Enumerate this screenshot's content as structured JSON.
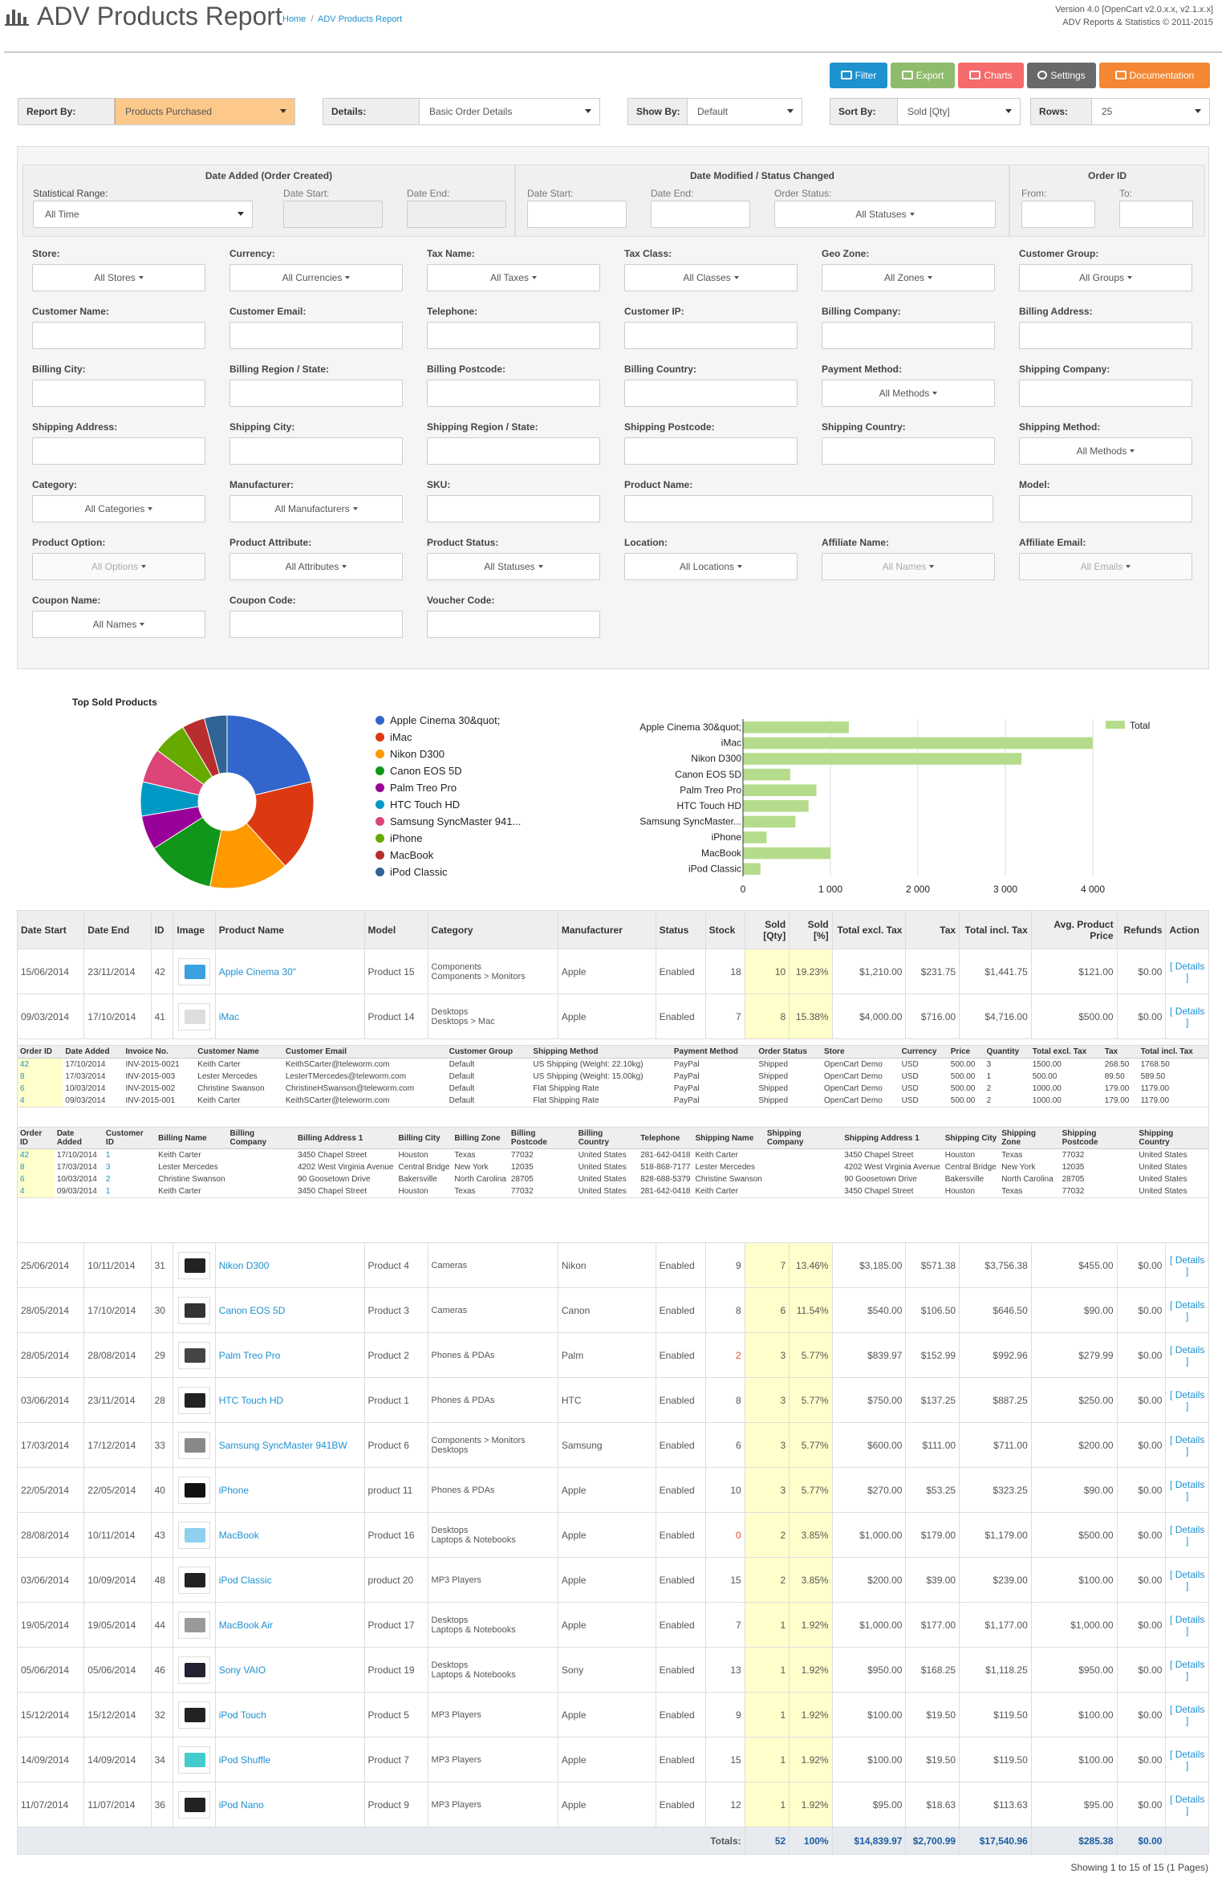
{
  "header": {
    "title": "ADV Products Report",
    "breadcrumb": [
      "Home",
      "ADV Products Report"
    ],
    "version_line1": "Version 4.0 [OpenCart v2.0.x.x, v2.1.x.x]",
    "version_line2": "ADV Reports & Statistics © 2011-2015"
  },
  "toolbar": {
    "filter": "Filter",
    "export": "Export",
    "charts": "Charts",
    "settings": "Settings",
    "documentation": "Documentation"
  },
  "selectors": [
    {
      "label": "Report By:",
      "value": "Products Purchased"
    },
    {
      "label": "Details:",
      "value": "Basic Order Details"
    },
    {
      "label": "Show By:",
      "value": "Default"
    },
    {
      "label": "Sort By:",
      "value": "Sold [Qty]"
    },
    {
      "label": "Rows:",
      "value": "25"
    }
  ],
  "filters": {
    "date_added": {
      "head": "Date Added (Order Created)",
      "range_label": "Statistical Range:",
      "range_value": "All Time",
      "start": "Date Start:",
      "end": "Date End:"
    },
    "date_modified": {
      "head": "Date Modified / Status Changed",
      "start": "Date Start:",
      "end": "Date End:",
      "status_label": "Order Status:",
      "status_value": "All Statuses"
    },
    "order_id": {
      "head": "Order ID",
      "from": "From:",
      "to": "To:"
    },
    "fields": [
      {
        "label": "Store:",
        "value": "All Stores",
        "dd": true
      },
      {
        "label": "Currency:",
        "value": "All Currencies",
        "dd": true
      },
      {
        "label": "Tax Name:",
        "value": "All Taxes",
        "dd": true
      },
      {
        "label": "Tax Class:",
        "value": "All Classes",
        "dd": true
      },
      {
        "label": "Geo Zone:",
        "value": "All Zones",
        "dd": true
      },
      {
        "label": "Customer Group:",
        "value": "All Groups",
        "dd": true
      },
      {
        "label": "Customer Name:"
      },
      {
        "label": "Customer Email:"
      },
      {
        "label": "Telephone:"
      },
      {
        "label": "Customer IP:"
      },
      {
        "label": "Billing Company:"
      },
      {
        "label": "Billing Address:"
      },
      {
        "label": "Billing City:"
      },
      {
        "label": "Billing Region / State:"
      },
      {
        "label": "Billing Postcode:"
      },
      {
        "label": "Billing Country:"
      },
      {
        "label": "Payment Method:",
        "value": "All Methods",
        "dd": true
      },
      {
        "label": "Shipping Company:"
      },
      {
        "label": "Shipping Address:"
      },
      {
        "label": "Shipping City:"
      },
      {
        "label": "Shipping Region / State:"
      },
      {
        "label": "Shipping Postcode:"
      },
      {
        "label": "Shipping Country:"
      },
      {
        "label": "Shipping Method:",
        "value": "All Methods",
        "dd": true
      },
      {
        "label": "Category:",
        "value": "All Categories",
        "dd": true
      },
      {
        "label": "Manufacturer:",
        "value": "All Manufacturers",
        "dd": true
      },
      {
        "label": "SKU:"
      },
      {
        "label": "Product Name:",
        "wide": true
      },
      {
        "label": "Model:"
      },
      {
        "label": "Product Option:",
        "value": "All Options",
        "dd": true,
        "dis": true
      },
      {
        "label": "Product Attribute:",
        "value": "All Attributes",
        "dd": true
      },
      {
        "label": "Product Status:",
        "value": "All Statuses",
        "dd": true
      },
      {
        "label": "Location:",
        "value": "All Locations",
        "dd": true
      },
      {
        "label": "Affiliate Name:",
        "value": "All Names",
        "dd": true,
        "dis": true
      },
      {
        "label": "Affiliate Email:",
        "value": "All Emails",
        "dd": true,
        "dis": true
      },
      {
        "label": "Coupon Name:",
        "value": "All Names",
        "dd": true
      },
      {
        "label": "Coupon Code:"
      },
      {
        "label": "Voucher Code:"
      }
    ]
  },
  "chart_data": [
    {
      "type": "pie",
      "title": "Top Sold Products",
      "categories": [
        "Apple Cinema 30&quot;",
        "iMac",
        "Nikon D300",
        "Canon EOS 5D",
        "Palm Treo Pro",
        "HTC Touch HD",
        "Samsung SyncMaster 941...",
        "iPhone",
        "MacBook",
        "iPod Classic"
      ],
      "values": [
        10,
        8,
        7,
        6,
        3,
        3,
        3,
        3,
        2,
        2
      ],
      "colors": [
        "#3366cc",
        "#dc3912",
        "#ff9900",
        "#109618",
        "#990099",
        "#0099c6",
        "#dd4477",
        "#66aa00",
        "#b82e2e",
        "#316395"
      ]
    },
    {
      "type": "bar",
      "categories": [
        "Apple Cinema 30&quot;",
        "iMac",
        "Nikon D300",
        "Canon EOS 5D",
        "Palm Treo Pro",
        "HTC Touch HD",
        "Samsung SyncMaster...",
        "iPhone",
        "MacBook",
        "iPod Classic"
      ],
      "series": [
        {
          "name": "Total",
          "values": [
            1210,
            4000,
            3185,
            540,
            839.97,
            750,
            600,
            270,
            1000,
            200
          ]
        }
      ],
      "xlim": [
        0,
        4000
      ],
      "xticks": [
        "0",
        "1 000",
        "2 000",
        "3 000",
        "4 000"
      ],
      "color": "#b5dc8c"
    }
  ],
  "table": {
    "headers": [
      "Date Start",
      "Date End",
      "ID",
      "Image",
      "Product Name",
      "Model",
      "Category",
      "Manufacturer",
      "Status",
      "Stock",
      "Sold [Qty]",
      "Sold [%]",
      "Total excl. Tax",
      "Tax",
      "Total incl. Tax",
      "Avg. Product Price",
      "Refunds",
      "Action"
    ],
    "rows": [
      [
        "15/06/2014",
        "23/11/2014",
        "42",
        "",
        "Apple Cinema 30\"",
        "Product 15",
        "Components\nComponents > Monitors",
        "Apple",
        "Enabled",
        "18",
        "10",
        "19.23%",
        "$1,210.00",
        "$231.75",
        "$1,441.75",
        "$121.00",
        "$0.00",
        "[ Details ]"
      ],
      [
        "09/03/2014",
        "17/10/2014",
        "41",
        "",
        "iMac",
        "Product 14",
        "Desktops\nDesktops > Mac",
        "Apple",
        "Enabled",
        "7",
        "8",
        "15.38%",
        "$4,000.00",
        "$716.00",
        "$4,716.00",
        "$500.00",
        "$0.00",
        "[ Details ]"
      ],
      [
        "25/06/2014",
        "10/11/2014",
        "31",
        "",
        "Nikon D300",
        "Product 4",
        "Cameras",
        "Nikon",
        "Enabled",
        "9",
        "7",
        "13.46%",
        "$3,185.00",
        "$571.38",
        "$3,756.38",
        "$455.00",
        "$0.00",
        "[ Details ]"
      ],
      [
        "28/05/2014",
        "17/10/2014",
        "30",
        "",
        "Canon EOS 5D",
        "Product 3",
        "Cameras",
        "Canon",
        "Enabled",
        "8",
        "6",
        "11.54%",
        "$540.00",
        "$106.50",
        "$646.50",
        "$90.00",
        "$0.00",
        "[ Details ]"
      ],
      [
        "28/05/2014",
        "28/08/2014",
        "29",
        "",
        "Palm Treo Pro",
        "Product 2",
        "Phones & PDAs",
        "Palm",
        "Enabled",
        "2",
        "3",
        "5.77%",
        "$839.97",
        "$152.99",
        "$992.96",
        "$279.99",
        "$0.00",
        "[ Details ]"
      ],
      [
        "03/06/2014",
        "23/11/2014",
        "28",
        "",
        "HTC Touch HD",
        "Product 1",
        "Phones & PDAs",
        "HTC",
        "Enabled",
        "8",
        "3",
        "5.77%",
        "$750.00",
        "$137.25",
        "$887.25",
        "$250.00",
        "$0.00",
        "[ Details ]"
      ],
      [
        "17/03/2014",
        "17/12/2014",
        "33",
        "",
        "Samsung SyncMaster 941BW",
        "Product 6",
        "Components > Monitors\nDesktops",
        "Samsung",
        "Enabled",
        "6",
        "3",
        "5.77%",
        "$600.00",
        "$111.00",
        "$711.00",
        "$200.00",
        "$0.00",
        "[ Details ]"
      ],
      [
        "22/05/2014",
        "22/05/2014",
        "40",
        "",
        "iPhone",
        "product 11",
        "Phones & PDAs",
        "Apple",
        "Enabled",
        "10",
        "3",
        "5.77%",
        "$270.00",
        "$53.25",
        "$323.25",
        "$90.00",
        "$0.00",
        "[ Details ]"
      ],
      [
        "28/08/2014",
        "10/11/2014",
        "43",
        "",
        "MacBook",
        "Product 16",
        "Desktops\nLaptops & Notebooks",
        "Apple",
        "Enabled",
        "0",
        "2",
        "3.85%",
        "$1,000.00",
        "$179.00",
        "$1,179.00",
        "$500.00",
        "$0.00",
        "[ Details ]"
      ],
      [
        "03/06/2014",
        "10/09/2014",
        "48",
        "",
        "iPod Classic",
        "product 20",
        "MP3 Players",
        "Apple",
        "Enabled",
        "15",
        "2",
        "3.85%",
        "$200.00",
        "$39.00",
        "$239.00",
        "$100.00",
        "$0.00",
        "[ Details ]"
      ],
      [
        "19/05/2014",
        "19/05/2014",
        "44",
        "",
        "MacBook Air",
        "Product 17",
        "Desktops\nLaptops & Notebooks",
        "Apple",
        "Enabled",
        "7",
        "1",
        "1.92%",
        "$1,000.00",
        "$177.00",
        "$1,177.00",
        "$1,000.00",
        "$0.00",
        "[ Details ]"
      ],
      [
        "05/06/2014",
        "05/06/2014",
        "46",
        "",
        "Sony VAIO",
        "Product 19",
        "Desktops\nLaptops & Notebooks",
        "Sony",
        "Enabled",
        "13",
        "1",
        "1.92%",
        "$950.00",
        "$168.25",
        "$1,118.25",
        "$950.00",
        "$0.00",
        "[ Details ]"
      ],
      [
        "15/12/2014",
        "15/12/2014",
        "32",
        "",
        "iPod Touch",
        "Product 5",
        "MP3 Players",
        "Apple",
        "Enabled",
        "9",
        "1",
        "1.92%",
        "$100.00",
        "$19.50",
        "$119.50",
        "$100.00",
        "$0.00",
        "[ Details ]"
      ],
      [
        "14/09/2014",
        "14/09/2014",
        "34",
        "",
        "iPod Shuffle",
        "Product 7",
        "MP3 Players",
        "Apple",
        "Enabled",
        "15",
        "1",
        "1.92%",
        "$100.00",
        "$19.50",
        "$119.50",
        "$100.00",
        "$0.00",
        "[ Details ]"
      ],
      [
        "11/07/2014",
        "11/07/2014",
        "36",
        "",
        "iPod Nano",
        "Product 9",
        "MP3 Players",
        "Apple",
        "Enabled",
        "12",
        "1",
        "1.92%",
        "$95.00",
        "$18.63",
        "$113.63",
        "$95.00",
        "$0.00",
        "[ Details ]"
      ]
    ],
    "totals": {
      "label": "Totals:",
      "qty": "52",
      "pct": "100%",
      "excl": "$14,839.97",
      "tax": "$2,700.99",
      "incl": "$17,540.96",
      "avg": "$285.38",
      "refunds": "$0.00"
    }
  },
  "order_details": {
    "headers": [
      "Order ID",
      "Date Added",
      "Invoice No.",
      "Customer Name",
      "Customer Email",
      "Customer Group",
      "Shipping Method",
      "Payment Method",
      "Order Status",
      "Store",
      "Currency",
      "Price",
      "Quantity",
      "Total excl. Tax",
      "Tax",
      "Total incl. Tax"
    ],
    "rows": [
      [
        "42",
        "17/10/2014",
        "INV-2015-0021",
        "Keith Carter",
        "KeithSCarter@teleworm.com",
        "Default",
        "US Shipping (Weight: 22.10kg)",
        "PayPal",
        "Shipped",
        "OpenCart Demo",
        "USD",
        "500.00",
        "3",
        "1500.00",
        "268.50",
        "1768.50"
      ],
      [
        "8",
        "17/03/2014",
        "INV-2015-003",
        "Lester Mercedes",
        "LesterTMercedes@teleworm.com",
        "Default",
        "US Shipping (Weight: 15.00kg)",
        "PayPal",
        "Shipped",
        "OpenCart Demo",
        "USD",
        "500.00",
        "1",
        "500.00",
        "89.50",
        "589.50"
      ],
      [
        "6",
        "10/03/2014",
        "INV-2015-002",
        "Christine Swanson",
        "ChristineHSwanson@teleworm.com",
        "Default",
        "Flat Shipping Rate",
        "PayPal",
        "Shipped",
        "OpenCart Demo",
        "USD",
        "500.00",
        "2",
        "1000.00",
        "179.00",
        "1179.00"
      ],
      [
        "4",
        "09/03/2014",
        "INV-2015-001",
        "Keith Carter",
        "KeithSCarter@teleworm.com",
        "Default",
        "Flat Shipping Rate",
        "PayPal",
        "Shipped",
        "OpenCart Demo",
        "USD",
        "500.00",
        "2",
        "1000.00",
        "179.00",
        "1179.00"
      ]
    ]
  },
  "address_details": {
    "headers": [
      "Order ID",
      "Date Added",
      "Customer ID",
      "Billing Name",
      "Billing Company",
      "Billing Address 1",
      "Billing City",
      "Billing Zone",
      "Billing Postcode",
      "Billing Country",
      "Telephone",
      "Shipping Name",
      "Shipping Company",
      "Shipping Address 1",
      "Shipping City",
      "Shipping Zone",
      "Shipping Postcode",
      "Shipping Country"
    ],
    "rows": [
      [
        "42",
        "17/10/2014",
        "1",
        "Keith Carter",
        "",
        "3450 Chapel Street",
        "Houston",
        "Texas",
        "77032",
        "United States",
        "281-642-0418",
        "Keith Carter",
        "",
        "3450 Chapel Street",
        "Houston",
        "Texas",
        "77032",
        "United States"
      ],
      [
        "8",
        "17/03/2014",
        "3",
        "Lester Mercedes",
        "",
        "4202 West Virginia Avenue",
        "Central Bridge",
        "New York",
        "12035",
        "United States",
        "518-868-7177",
        "Lester Mercedes",
        "",
        "4202 West Virginia Avenue",
        "Central Bridge",
        "New York",
        "12035",
        "United States"
      ],
      [
        "6",
        "10/03/2014",
        "2",
        "Christine Swanson",
        "",
        "90 Goosetown Drive",
        "Bakersville",
        "North Carolina",
        "28705",
        "United States",
        "828-688-5379",
        "Christine Swanson",
        "",
        "90 Goosetown Drive",
        "Bakersville",
        "North Carolina",
        "28705",
        "United States"
      ],
      [
        "4",
        "09/03/2014",
        "1",
        "Keith Carter",
        "",
        "3450 Chapel Street",
        "Houston",
        "Texas",
        "77032",
        "United States",
        "281-642-0418",
        "Keith Carter",
        "",
        "3450 Chapel Street",
        "Houston",
        "Texas",
        "77032",
        "United States"
      ]
    ]
  },
  "footer": {
    "showing": "Showing 1 to 15 of 15 (1 Pages)"
  }
}
